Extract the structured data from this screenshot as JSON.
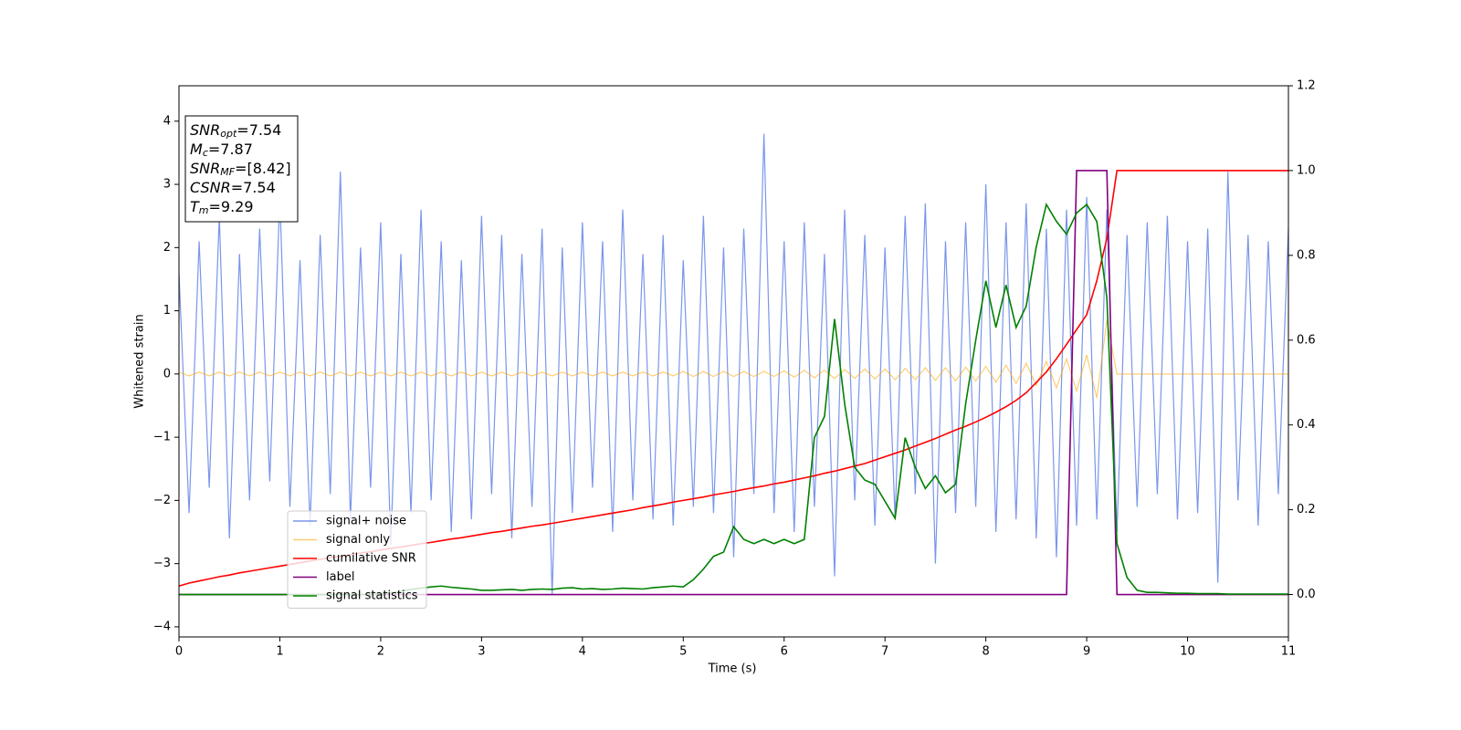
{
  "chart_data": {
    "type": "line",
    "xlabel": "Time (s)",
    "ylabel": "Whitened strain",
    "xlim": [
      0,
      11
    ],
    "ylim": [
      -4.16,
      4.56
    ],
    "y2lim": [
      -0.1,
      1.2
    ],
    "xticks": [
      0,
      1,
      2,
      3,
      4,
      5,
      6,
      7,
      8,
      9,
      10,
      11
    ],
    "yticks": [
      {
        "value": -4,
        "label": "−4"
      },
      {
        "value": -3,
        "label": "−3"
      },
      {
        "value": -2,
        "label": "−2"
      },
      {
        "value": -1,
        "label": "−1"
      },
      0,
      1,
      2,
      3,
      4
    ],
    "y2ticks": [
      {
        "value": 0,
        "label": "0.0"
      },
      0.2,
      0.4,
      0.6,
      0.8,
      {
        "value": 1,
        "label": "1.0"
      },
      1.2
    ],
    "legend": "lower left",
    "annotations": [
      {
        "symbol": "SNR",
        "subscript": "opt",
        "text": "=7.54"
      },
      {
        "symbol": "M",
        "subscript": "c",
        "text": "=7.87"
      },
      {
        "symbol": "SNR",
        "subscript": "MF",
        "text": "=[8.42]"
      },
      {
        "symbol": "CSNR",
        "text": "=7.54"
      },
      {
        "symbol": "T",
        "subscript": "m",
        "text": "=9.29"
      }
    ],
    "x": [
      0,
      0.1,
      0.2,
      0.3,
      0.4,
      0.5,
      0.6,
      0.7,
      0.8,
      0.9,
      1,
      1.1,
      1.2,
      1.3,
      1.4,
      1.5,
      1.6,
      1.7,
      1.8,
      1.9,
      2,
      2.1,
      2.2,
      2.3,
      2.4,
      2.5,
      2.6,
      2.7,
      2.8,
      2.9,
      3,
      3.1,
      3.2,
      3.3,
      3.4,
      3.5,
      3.6,
      3.7,
      3.8,
      3.9,
      4,
      4.1,
      4.2,
      4.3,
      4.4,
      4.5,
      4.6,
      4.7,
      4.8,
      4.9,
      5,
      5.1,
      5.2,
      5.3,
      5.4,
      5.5,
      5.6,
      5.7,
      5.8,
      5.9,
      6,
      6.1,
      6.2,
      6.3,
      6.4,
      6.5,
      6.6,
      6.7,
      6.8,
      6.9,
      7,
      7.1,
      7.2,
      7.3,
      7.4,
      7.5,
      7.6,
      7.7,
      7.8,
      7.9,
      8,
      8.1,
      8.2,
      8.3,
      8.4,
      8.5,
      8.6,
      8.7,
      8.8,
      8.9,
      9,
      9.1,
      9.2,
      9.3,
      9.4,
      9.5,
      9.6,
      9.7,
      9.8,
      9.9,
      10,
      10.1,
      10.2,
      10.3,
      10.4,
      10.5,
      10.6,
      10.7,
      10.8,
      10.9,
      11
    ],
    "series": [
      {
        "name": "signal+ noise",
        "color": "#4169e1",
        "axis": "y",
        "values": [
          1.6,
          -2.2,
          2.1,
          -1.8,
          2.5,
          -2.6,
          1.9,
          -2.0,
          2.3,
          -1.7,
          2.8,
          -2.1,
          1.8,
          -2.4,
          2.2,
          -1.9,
          3.2,
          -2.3,
          2.0,
          -1.8,
          2.4,
          -2.7,
          1.9,
          -2.2,
          2.6,
          -2.0,
          2.1,
          -2.5,
          1.8,
          -2.3,
          2.5,
          -1.9,
          2.2,
          -2.6,
          1.9,
          -2.1,
          2.3,
          -3.5,
          2.0,
          -2.2,
          2.4,
          -1.8,
          2.1,
          -2.5,
          2.6,
          -2.0,
          1.9,
          -2.3,
          2.2,
          -2.4,
          1.8,
          -2.1,
          2.5,
          -2.2,
          2.0,
          -2.9,
          2.3,
          -1.9,
          3.8,
          -2.2,
          2.1,
          -2.5,
          2.4,
          -2.1,
          1.9,
          -3.2,
          2.6,
          -2.0,
          2.2,
          -2.4,
          2.0,
          -2.3,
          2.5,
          -1.9,
          2.7,
          -3.0,
          2.1,
          -2.2,
          2.4,
          -2.1,
          3.0,
          -2.5,
          2.4,
          -2.3,
          2.7,
          -2.6,
          2.3,
          -2.9,
          2.6,
          -2.4,
          2.8,
          -2.3,
          2.6,
          -2.5,
          2.2,
          -2.1,
          2.4,
          -1.9,
          2.5,
          -2.3,
          2.1,
          -2.2,
          2.3,
          -3.3,
          3.2,
          -2.0,
          2.2,
          -2.4,
          2.1,
          -1.9,
          2.3
        ]
      },
      {
        "name": "signal only",
        "color": "#ffa500",
        "axis": "y",
        "values": [
          0.03,
          -0.03,
          0.03,
          -0.03,
          0.03,
          -0.03,
          0.03,
          -0.03,
          0.03,
          -0.03,
          0.03,
          -0.03,
          0.03,
          -0.03,
          0.03,
          -0.03,
          0.03,
          -0.03,
          0.03,
          -0.03,
          0.03,
          -0.03,
          0.03,
          -0.03,
          0.03,
          -0.03,
          0.03,
          -0.03,
          0.03,
          -0.03,
          0.03,
          -0.03,
          0.03,
          -0.03,
          0.03,
          -0.03,
          0.03,
          -0.03,
          0.03,
          -0.03,
          0.03,
          -0.03,
          0.03,
          -0.03,
          0.03,
          -0.03,
          0.03,
          -0.03,
          0.03,
          -0.03,
          0.04,
          -0.04,
          0.04,
          -0.04,
          0.04,
          -0.04,
          0.04,
          -0.04,
          0.04,
          -0.04,
          0.05,
          -0.05,
          0.06,
          -0.06,
          0.06,
          -0.07,
          0.07,
          -0.07,
          0.08,
          -0.08,
          0.08,
          -0.09,
          0.09,
          -0.09,
          0.1,
          -0.1,
          0.1,
          -0.11,
          0.11,
          -0.11,
          0.12,
          -0.13,
          0.14,
          -0.15,
          0.17,
          -0.18,
          0.2,
          -0.22,
          0.24,
          -0.27,
          0.3,
          -0.38,
          0.85,
          0,
          0,
          0,
          0,
          0,
          0,
          0,
          0,
          0,
          0,
          0,
          0,
          0,
          0,
          0,
          0,
          0,
          0
        ]
      },
      {
        "name": "cumilative SNR",
        "color": "#ff0000",
        "axis": "y2",
        "values": [
          0.02,
          0.027,
          0.032,
          0.037,
          0.042,
          0.046,
          0.051,
          0.055,
          0.059,
          0.063,
          0.067,
          0.071,
          0.075,
          0.079,
          0.083,
          0.087,
          0.09,
          0.094,
          0.098,
          0.101,
          0.105,
          0.109,
          0.112,
          0.116,
          0.12,
          0.123,
          0.127,
          0.131,
          0.134,
          0.138,
          0.142,
          0.146,
          0.149,
          0.153,
          0.157,
          0.161,
          0.164,
          0.168,
          0.172,
          0.176,
          0.18,
          0.184,
          0.188,
          0.192,
          0.196,
          0.2,
          0.205,
          0.209,
          0.213,
          0.218,
          0.222,
          0.226,
          0.23,
          0.235,
          0.239,
          0.243,
          0.248,
          0.252,
          0.256,
          0.261,
          0.265,
          0.27,
          0.275,
          0.28,
          0.286,
          0.291,
          0.297,
          0.303,
          0.309,
          0.317,
          0.325,
          0.333,
          0.341,
          0.35,
          0.359,
          0.368,
          0.378,
          0.388,
          0.397,
          0.407,
          0.418,
          0.43,
          0.443,
          0.458,
          0.476,
          0.5,
          0.525,
          0.556,
          0.59,
          0.625,
          0.66,
          0.74,
          0.84,
          1,
          1,
          1,
          1,
          1,
          1,
          1,
          1,
          1,
          1,
          1,
          1,
          1,
          1,
          1,
          1,
          1,
          1
        ]
      },
      {
        "name": "label",
        "color": "#800080",
        "axis": "y2",
        "values": [
          0,
          0,
          0,
          0,
          0,
          0,
          0,
          0,
          0,
          0,
          0,
          0,
          0,
          0,
          0,
          0,
          0,
          0,
          0,
          0,
          0,
          0,
          0,
          0,
          0,
          0,
          0,
          0,
          0,
          0,
          0,
          0,
          0,
          0,
          0,
          0,
          0,
          0,
          0,
          0,
          0,
          0,
          0,
          0,
          0,
          0,
          0,
          0,
          0,
          0,
          0,
          0,
          0,
          0,
          0,
          0,
          0,
          0,
          0,
          0,
          0,
          0,
          0,
          0,
          0,
          0,
          0,
          0,
          0,
          0,
          0,
          0,
          0,
          0,
          0,
          0,
          0,
          0,
          0,
          0,
          0,
          0,
          0,
          0,
          0,
          0,
          0,
          0,
          0,
          1,
          1,
          1,
          1,
          0,
          0,
          0,
          0,
          0,
          0,
          0,
          0,
          0,
          0,
          0,
          0,
          0,
          0,
          0,
          0,
          0,
          0
        ]
      },
      {
        "name": "signal statistics",
        "color": "#008000",
        "axis": "y2",
        "values": [
          0,
          0,
          0,
          0,
          0,
          0,
          0,
          0,
          0,
          0,
          0,
          0,
          0,
          0,
          0,
          0,
          0,
          0,
          0,
          0,
          0.002,
          0.004,
          0.008,
          0.012,
          0.015,
          0.018,
          0.02,
          0.017,
          0.015,
          0.013,
          0.01,
          0.01,
          0.011,
          0.012,
          0.01,
          0.012,
          0.013,
          0.012,
          0.015,
          0.016,
          0.013,
          0.014,
          0.012,
          0.013,
          0.015,
          0.014,
          0.013,
          0.016,
          0.018,
          0.02,
          0.018,
          0.035,
          0.06,
          0.09,
          0.1,
          0.16,
          0.13,
          0.12,
          0.13,
          0.12,
          0.13,
          0.12,
          0.13,
          0.37,
          0.42,
          0.65,
          0.45,
          0.3,
          0.27,
          0.26,
          0.22,
          0.18,
          0.37,
          0.3,
          0.25,
          0.28,
          0.24,
          0.26,
          0.45,
          0.6,
          0.74,
          0.63,
          0.73,
          0.63,
          0.68,
          0.82,
          0.92,
          0.88,
          0.85,
          0.9,
          0.92,
          0.88,
          0.7,
          0.12,
          0.04,
          0.01,
          0.005,
          0.005,
          0.004,
          0.003,
          0.003,
          0.002,
          0.002,
          0.002,
          0.001,
          0.001,
          0.001,
          0.001,
          0.001,
          0.001,
          0.001
        ]
      }
    ]
  }
}
